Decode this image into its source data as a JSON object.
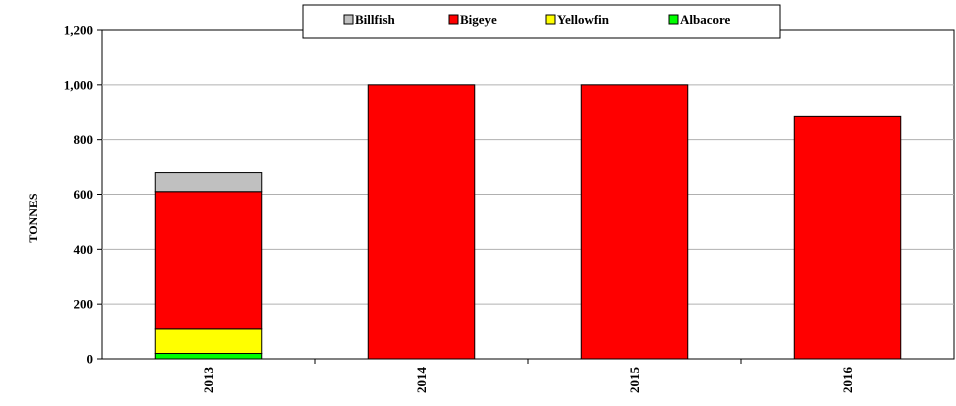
{
  "chart_data": {
    "type": "bar",
    "stacked": true,
    "categories": [
      "2013",
      "2014",
      "2015",
      "2016"
    ],
    "series": [
      {
        "name": "Albacore",
        "color": "#00ff00",
        "values": [
          20,
          0,
          0,
          0
        ]
      },
      {
        "name": "Yellowfin",
        "color": "#ffff00",
        "values": [
          90,
          0,
          0,
          0
        ]
      },
      {
        "name": "Bigeye",
        "color": "#ff0000",
        "values": [
          500,
          1000,
          1000,
          885
        ]
      },
      {
        "name": "Billfish",
        "color": "#c0c0c0",
        "values": [
          70,
          0,
          0,
          0
        ]
      }
    ],
    "legend_order": [
      "Billfish",
      "Bigeye",
      "Yellowfin",
      "Albacore"
    ],
    "legend_position": "top-center",
    "ylabel": "TONNES",
    "xlabel": "",
    "ylim": [
      0,
      1200
    ],
    "yticks": [
      0,
      200,
      400,
      600,
      800,
      1000,
      1200
    ],
    "ytick_labels": [
      "0",
      "200",
      "400",
      "600",
      "800",
      "1,000",
      "1,200"
    ],
    "grid": true
  }
}
